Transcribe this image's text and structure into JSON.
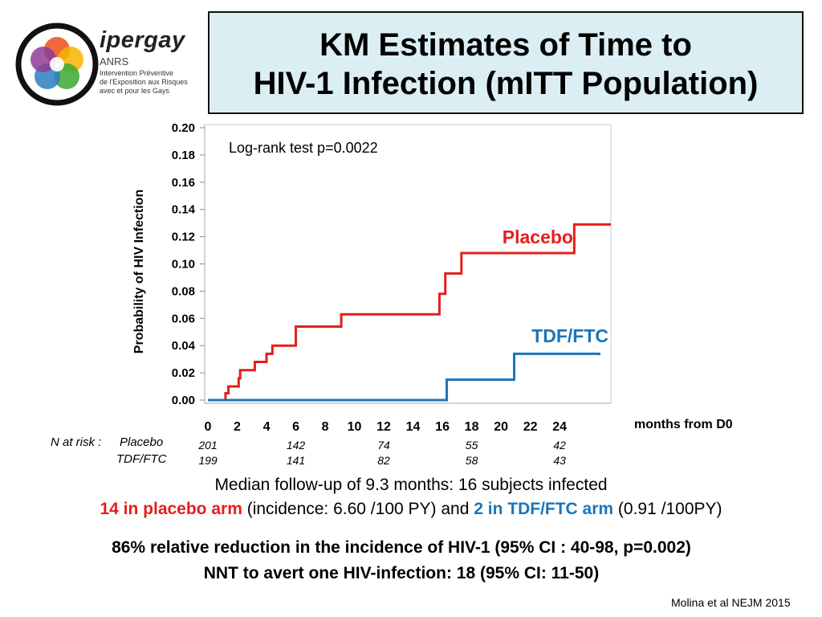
{
  "logo": {
    "word": "ipergay",
    "org": "ANRS",
    "sub1": "Intervention Préventive",
    "sub2": "de l'Exposition aux Risques",
    "sub3": "avec et pour les Gays"
  },
  "title": {
    "line1": "KM Estimates of Time to",
    "line2": "HIV-1 Infection (mITT Population)"
  },
  "chart_data": {
    "type": "line",
    "subtype": "kaplan-meier step curve",
    "xlabel": "months from D0",
    "ylabel": "Probability of HIV Infection",
    "xlim": [
      0,
      27.5
    ],
    "ylim": [
      0,
      0.2
    ],
    "x_ticks": [
      "0",
      "2",
      "4",
      "6",
      "8",
      "10",
      "12",
      "14",
      "16",
      "18",
      "20",
      "22",
      "24"
    ],
    "y_ticks": [
      "0.00",
      "0.02",
      "0.04",
      "0.06",
      "0.08",
      "0.10",
      "0.12",
      "0.14",
      "0.16",
      "0.18",
      "0.20"
    ],
    "annotation": "Log-rank test p=0.0022",
    "series": [
      {
        "name": "Placebo",
        "color": "#e41e1e",
        "x": [
          0,
          1.2,
          1.4,
          2.1,
          2.2,
          3.2,
          4.0,
          4.4,
          6.0,
          9.1,
          15.8,
          16.2,
          17.3,
          25.0,
          27.5
        ],
        "y": [
          0.0,
          0.005,
          0.01,
          0.016,
          0.022,
          0.028,
          0.034,
          0.04,
          0.054,
          0.063,
          0.078,
          0.093,
          0.108,
          0.129,
          0.129
        ]
      },
      {
        "name": "TDF/FTC",
        "color": "#1a75bb",
        "x": [
          0,
          16.3,
          20.9,
          26.7
        ],
        "y": [
          0.0,
          0.015,
          0.034,
          0.033
        ]
      }
    ],
    "at_risk": {
      "label": "N at risk :",
      "months": [
        "0",
        "6",
        "12",
        "18",
        "24"
      ],
      "rows": [
        {
          "name": "Placebo",
          "values": [
            "201",
            "142",
            "74",
            "55",
            "42"
          ]
        },
        {
          "name": "TDF/FTC",
          "values": [
            "199",
            "141",
            "82",
            "58",
            "43"
          ]
        }
      ]
    }
  },
  "footer": {
    "line1": "Median follow-up of 9.3 months: 16 subjects infected",
    "line2_red": "14 in placebo arm",
    "line2_mid": " (incidence: 6.60 /100 PY) and ",
    "line2_blue": "2 in TDF/FTC arm",
    "line2_end": " (0.91 /100PY)",
    "line3": "86% relative reduction in the incidence of HIV-1 (95% CI : 40-98, p=0.002)",
    "line4": "NNT to avert one HIV-infection: 18 (95% CI: 11-50)",
    "citation": "Molina et al NEJM 2015"
  }
}
